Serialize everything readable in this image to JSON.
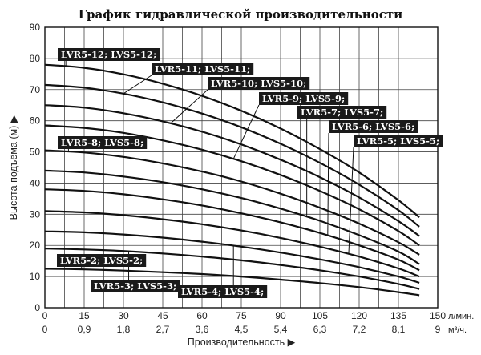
{
  "chart_data": {
    "type": "line",
    "title": "График гидравлической производительности",
    "ylabel": "Высота подъёма (м) ▶",
    "xlabel": "Производительность ▶",
    "x_unit_primary": "л/мин.",
    "x_unit_secondary": "м³/ч.",
    "xlim": [
      0,
      150
    ],
    "ylim": [
      0,
      90
    ],
    "x_ticks": [
      "0",
      "15",
      "30",
      "45",
      "60",
      "75",
      "90",
      "105",
      "120",
      "135",
      "150"
    ],
    "x_ticks_secondary": [
      "0",
      "0,9",
      "1,8",
      "2,7",
      "3,6",
      "4,5",
      "5,4",
      "6,3",
      "7,2",
      "8,1",
      "9"
    ],
    "y_ticks": [
      "0",
      "10",
      "20",
      "30",
      "40",
      "50",
      "60",
      "70",
      "80",
      "90"
    ],
    "grid": true,
    "series": [
      {
        "name": "LVR5-2; LVS5-2;",
        "x": [
          0,
          15,
          30,
          45,
          60,
          75,
          90,
          105,
          120,
          135,
          143
        ],
        "y": [
          12.5,
          12.3,
          11.9,
          11.4,
          10.8,
          10.0,
          9.0,
          7.9,
          6.6,
          5.0,
          4.0
        ]
      },
      {
        "name": "LVR5-3; LVS5-3;",
        "x": [
          0,
          15,
          30,
          45,
          60,
          75,
          90,
          105,
          120,
          135,
          143
        ],
        "y": [
          19.0,
          18.7,
          18.2,
          17.4,
          16.4,
          15.2,
          13.7,
          12.0,
          10.0,
          7.6,
          6.0
        ]
      },
      {
        "name": "LVR5-4; LVS5-4;",
        "x": [
          0,
          15,
          30,
          45,
          60,
          75,
          90,
          105,
          120,
          135,
          143
        ],
        "y": [
          24.5,
          24.2,
          23.5,
          22.5,
          21.2,
          19.6,
          17.7,
          15.5,
          13.0,
          10.0,
          8.0
        ]
      },
      {
        "name": "LVR5-5; LVS5-5;",
        "x": [
          0,
          15,
          30,
          45,
          60,
          75,
          90,
          105,
          120,
          135,
          143
        ],
        "y": [
          31.0,
          30.6,
          29.7,
          28.4,
          26.8,
          24.8,
          22.4,
          19.6,
          16.4,
          12.6,
          10.0
        ]
      },
      {
        "name": "LVR5-6; LVS5-6;",
        "x": [
          0,
          15,
          30,
          45,
          60,
          75,
          90,
          105,
          120,
          135,
          143
        ],
        "y": [
          38.0,
          37.5,
          36.4,
          34.8,
          32.8,
          30.3,
          27.4,
          24.0,
          20.0,
          15.4,
          12.0
        ]
      },
      {
        "name": "LVR5-7; LVS5-7;",
        "x": [
          0,
          15,
          30,
          45,
          60,
          75,
          90,
          105,
          120,
          135,
          143
        ],
        "y": [
          44.0,
          43.4,
          42.1,
          40.3,
          38.0,
          35.2,
          31.8,
          27.9,
          23.3,
          18.0,
          14.0
        ]
      },
      {
        "name": "LVR5-8; LVS5-8;",
        "x": [
          0,
          15,
          30,
          45,
          60,
          75,
          90,
          105,
          120,
          135,
          143
        ],
        "y": [
          50.5,
          49.8,
          48.4,
          46.3,
          43.7,
          40.5,
          36.6,
          32.1,
          27.0,
          21.0,
          17.0
        ]
      },
      {
        "name": "LVR5-9; LVS5-9;",
        "x": [
          0,
          15,
          30,
          45,
          60,
          75,
          90,
          105,
          120,
          135,
          143
        ],
        "y": [
          58.5,
          57.7,
          56.1,
          53.7,
          50.7,
          47.0,
          42.6,
          37.5,
          31.6,
          24.6,
          20.0
        ]
      },
      {
        "name": "LVR5-10; LVS5-10;",
        "x": [
          0,
          15,
          30,
          45,
          60,
          75,
          90,
          105,
          120,
          135,
          143
        ],
        "y": [
          65.0,
          64.2,
          62.4,
          59.8,
          56.5,
          52.4,
          47.5,
          41.9,
          35.4,
          27.8,
          23.0
        ]
      },
      {
        "name": "LVR5-11; LVS5-11;",
        "x": [
          0,
          15,
          30,
          45,
          60,
          75,
          90,
          105,
          120,
          135,
          143
        ],
        "y": [
          71.5,
          70.6,
          68.7,
          65.9,
          62.3,
          57.9,
          52.6,
          46.5,
          39.5,
          31.3,
          26.0
        ]
      },
      {
        "name": "LVR5-12; LVS5-12;",
        "x": [
          0,
          15,
          30,
          45,
          60,
          75,
          90,
          105,
          120,
          135,
          143
        ],
        "y": [
          78.0,
          77.0,
          74.9,
          71.9,
          68.0,
          63.2,
          57.5,
          50.9,
          43.4,
          34.5,
          29.0
        ]
      }
    ]
  }
}
